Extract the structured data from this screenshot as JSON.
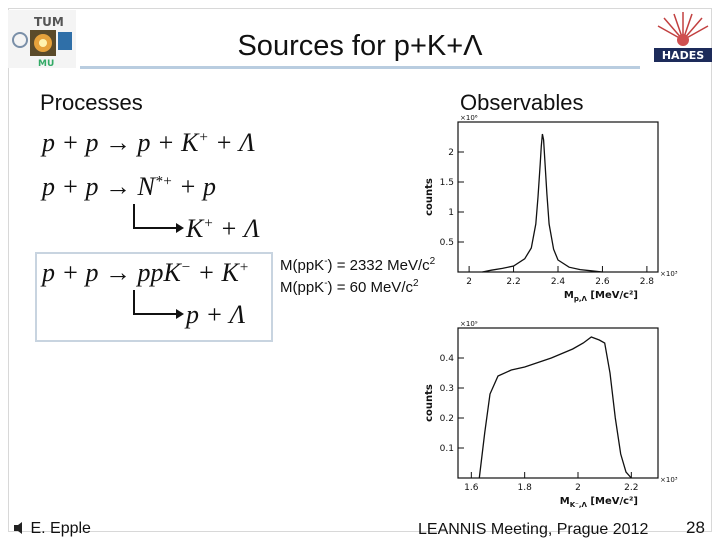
{
  "slide": {
    "title": "Sources for p+K+Λ",
    "left_heading": "Processes",
    "right_heading": "Observables",
    "reactions": {
      "r1": {
        "lhs": "p + p",
        "rhs_parts": [
          "p + K",
          "+",
          " + Λ"
        ]
      },
      "r2": {
        "lhs": "p + p",
        "rhs_main": "N",
        "rhs_sup": "*+",
        "rhs_tail": " + p",
        "decay": "K",
        "decay_sup": "+",
        "decay_tail": " + Λ"
      },
      "r3": {
        "lhs": "p + p",
        "rhs_main": "ppK",
        "rhs_sup": "−",
        "rhs_plus": " + K",
        "rhs_sup2": "+",
        "decay": "p + Λ"
      }
    },
    "mass_lines": [
      {
        "prefix": "M(ppK",
        "sup": "-",
        "suffix": ") = 2332 MeV/c",
        "sup2": "2"
      },
      {
        "prefix": "M(ppK",
        "sup": "-",
        "suffix": ") = 60 MeV/c",
        "sup2": "2"
      }
    ],
    "footer": {
      "author": "E. Epple",
      "event": "LEANNIS Meeting, Prague 2012",
      "page": "28"
    },
    "logos": {
      "left": "TUM",
      "left_sub": "MU",
      "right": "HADES"
    }
  },
  "chart_data": [
    {
      "type": "line",
      "ylabel": "counts",
      "xlabel": "M",
      "xlabel_sub": "p,Λ",
      "xlabel_unit": "[MeV/c²]",
      "x_exponent": "×10³",
      "y_exponent": "×10⁶",
      "xlim": [
        1.95,
        2.85
      ],
      "ylim": [
        0,
        2.5
      ],
      "x_ticks": [
        2,
        2.2,
        2.4,
        2.6,
        2.8
      ],
      "x_ticklabels": [
        "2",
        "2.2",
        "2.4",
        "2.6",
        "2.8"
      ],
      "y_ticks": [
        0.5,
        1,
        1.5,
        2
      ],
      "y_ticklabels": [
        "0.5",
        "1",
        "1.5",
        "2"
      ],
      "x": [
        2.06,
        2.1,
        2.15,
        2.2,
        2.25,
        2.28,
        2.3,
        2.31,
        2.32,
        2.325,
        2.33,
        2.335,
        2.34,
        2.35,
        2.36,
        2.38,
        2.4,
        2.45,
        2.5,
        2.55,
        2.6
      ],
      "y": [
        0.0,
        0.03,
        0.06,
        0.1,
        0.22,
        0.4,
        0.8,
        1.25,
        1.8,
        2.1,
        2.3,
        2.2,
        1.9,
        1.3,
        0.8,
        0.38,
        0.2,
        0.08,
        0.04,
        0.02,
        0.0
      ]
    },
    {
      "type": "line",
      "ylabel": "counts",
      "xlabel": "M",
      "xlabel_sub": "K⁻,Λ",
      "xlabel_unit": "[MeV/c²]",
      "x_exponent": "×10³",
      "y_exponent": "×10⁹",
      "xlim": [
        1.55,
        2.3
      ],
      "ylim": [
        0,
        0.5
      ],
      "x_ticks": [
        1.6,
        1.8,
        2,
        2.2
      ],
      "x_ticklabels": [
        "1.6",
        "1.8",
        "2",
        "2.2"
      ],
      "y_ticks": [
        0.1,
        0.2,
        0.3,
        0.4
      ],
      "y_ticklabels": [
        "0.1",
        "0.2",
        "0.3",
        "0.4"
      ],
      "x": [
        1.63,
        1.65,
        1.67,
        1.7,
        1.75,
        1.8,
        1.9,
        1.98,
        2.02,
        2.05,
        2.08,
        2.1,
        2.12,
        2.14,
        2.16,
        2.18,
        2.2
      ],
      "y": [
        0.0,
        0.15,
        0.28,
        0.34,
        0.36,
        0.37,
        0.4,
        0.43,
        0.45,
        0.47,
        0.46,
        0.45,
        0.35,
        0.2,
        0.08,
        0.02,
        0.0
      ]
    }
  ]
}
